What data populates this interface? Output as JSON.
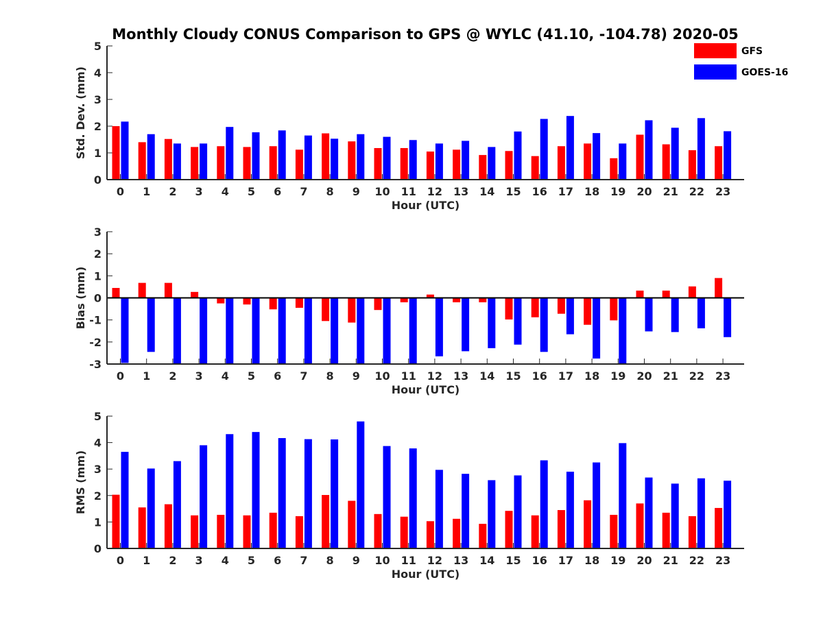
{
  "title": "Monthly Cloudy CONUS Comparison to GPS @ WYLC (41.10, -104.78) 2020-05",
  "legend": {
    "placement": "top-right",
    "entries": [
      {
        "name": "GFS",
        "color": "#ff0000"
      },
      {
        "name": "GOES-16",
        "color": "#0000ff"
      }
    ]
  },
  "chart_data": [
    {
      "type": "bar",
      "xlabel": "Hour (UTC)",
      "ylabel": "Std. Dev. (mm)",
      "ylim": [
        0,
        5
      ],
      "yticks": [
        "0",
        "1",
        "2",
        "3",
        "4",
        "5"
      ],
      "categories": [
        "0",
        "1",
        "2",
        "3",
        "4",
        "5",
        "6",
        "7",
        "8",
        "9",
        "10",
        "11",
        "12",
        "13",
        "14",
        "15",
        "16",
        "17",
        "18",
        "19",
        "20",
        "21",
        "22",
        "23"
      ],
      "series": [
        {
          "name": "GFS",
          "color": "#ff0000",
          "values": [
            2.0,
            1.4,
            1.52,
            1.22,
            1.25,
            1.22,
            1.25,
            1.12,
            1.73,
            1.43,
            1.18,
            1.18,
            1.05,
            1.12,
            0.92,
            1.07,
            0.88,
            1.25,
            1.35,
            0.8,
            1.68,
            1.32,
            1.1,
            1.25
          ]
        },
        {
          "name": "GOES-16",
          "color": "#0000ff",
          "values": [
            2.17,
            1.7,
            1.35,
            1.35,
            1.97,
            1.77,
            1.84,
            1.65,
            1.53,
            1.7,
            1.6,
            1.48,
            1.35,
            1.45,
            1.22,
            1.8,
            2.27,
            2.38,
            1.74,
            1.35,
            2.22,
            1.94,
            2.3,
            1.81
          ]
        }
      ]
    },
    {
      "type": "bar",
      "xlabel": "Hour (UTC)",
      "ylabel": "Bias (mm)",
      "ylim": [
        -3,
        3
      ],
      "yticks": [
        "-3",
        "-2",
        "-1",
        "0",
        "1",
        "2",
        "3"
      ],
      "categories": [
        "0",
        "1",
        "2",
        "3",
        "4",
        "5",
        "6",
        "7",
        "8",
        "9",
        "10",
        "11",
        "12",
        "13",
        "14",
        "15",
        "16",
        "17",
        "18",
        "19",
        "20",
        "21",
        "22",
        "23"
      ],
      "series": [
        {
          "name": "GFS",
          "color": "#ff0000",
          "values": [
            0.45,
            0.68,
            0.68,
            0.27,
            -0.25,
            -0.3,
            -0.52,
            -0.45,
            -1.05,
            -1.12,
            -0.55,
            -0.2,
            0.15,
            -0.2,
            -0.2,
            -0.98,
            -0.88,
            -0.72,
            -1.22,
            -1.02,
            0.33,
            0.33,
            0.52,
            0.9
          ]
        },
        {
          "name": "GOES-16",
          "color": "#0000ff",
          "values": [
            -2.95,
            -2.45,
            -3.0,
            -3.0,
            -3.0,
            -3.0,
            -3.0,
            -3.0,
            -3.0,
            -3.0,
            -3.0,
            -3.0,
            -2.65,
            -2.42,
            -2.28,
            -2.12,
            -2.45,
            -1.65,
            -2.75,
            -3.0,
            -1.52,
            -1.55,
            -1.38,
            -1.78
          ]
        }
      ]
    },
    {
      "type": "bar",
      "xlabel": "Hour (UTC)",
      "ylabel": "RMS (mm)",
      "ylim": [
        0,
        5
      ],
      "yticks": [
        "0",
        "1",
        "2",
        "3",
        "4",
        "5"
      ],
      "categories": [
        "0",
        "1",
        "2",
        "3",
        "4",
        "5",
        "6",
        "7",
        "8",
        "9",
        "10",
        "11",
        "12",
        "13",
        "14",
        "15",
        "16",
        "17",
        "18",
        "19",
        "20",
        "21",
        "22",
        "23"
      ],
      "series": [
        {
          "name": "GFS",
          "color": "#ff0000",
          "values": [
            2.03,
            1.55,
            1.67,
            1.25,
            1.27,
            1.25,
            1.35,
            1.22,
            2.02,
            1.8,
            1.3,
            1.2,
            1.03,
            1.12,
            0.93,
            1.42,
            1.25,
            1.45,
            1.82,
            1.27,
            1.7,
            1.35,
            1.22,
            1.53
          ]
        },
        {
          "name": "GOES-16",
          "color": "#0000ff",
          "values": [
            3.65,
            3.02,
            3.3,
            3.9,
            4.32,
            4.4,
            4.17,
            4.13,
            4.12,
            4.8,
            3.87,
            3.78,
            2.97,
            2.82,
            2.58,
            2.76,
            3.33,
            2.9,
            3.25,
            3.98,
            2.68,
            2.45,
            2.65,
            2.56
          ]
        }
      ]
    }
  ]
}
